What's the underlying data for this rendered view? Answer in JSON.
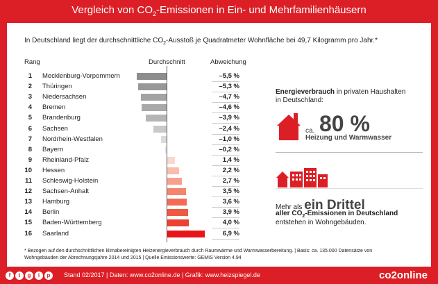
{
  "title": {
    "pre": "Vergleich von CO",
    "sub": "2",
    "post": "-Emissionen in Ein- und Mehrfamilienhäusern"
  },
  "intro": {
    "pre": "In Deutschland liegt der durchschnittliche CO",
    "sub": "2",
    "post": "-Ausstoß je Quadratmeter Wohnfläche bei 49,7 Kilogramm pro Jahr.*"
  },
  "headers": {
    "rank": "Rang",
    "avg": "Durchschnitt",
    "dev": "Abweichung"
  },
  "chart_data": {
    "type": "bar",
    "categories": [
      "Mecklenburg-Vorpommern",
      "Thüringen",
      "Niedersachsen",
      "Bremen",
      "Brandenburg",
      "Sachsen",
      "Nordrhein-Westfalen",
      "Bayern",
      "Rheinland-Pfalz",
      "Hessen",
      "Schleswig-Holstein",
      "Sachsen-Anhalt",
      "Hamburg",
      "Berlin",
      "Baden-Württemberg",
      "Saarland"
    ],
    "ranks": [
      "1",
      "2",
      "3",
      "4",
      "5",
      "6",
      "7",
      "8",
      "9",
      "10",
      "11",
      "12",
      "13",
      "14",
      "15",
      "16"
    ],
    "values": [
      -5.5,
      -5.3,
      -4.7,
      -4.6,
      -3.9,
      -2.4,
      -1.0,
      -0.2,
      1.4,
      2.2,
      2.7,
      3.5,
      3.6,
      3.9,
      4.0,
      6.9
    ],
    "labels": [
      "–5,5 %",
      "–5,3 %",
      "–4,7 %",
      "–4,6 %",
      "–3,9 %",
      "–2,4 %",
      "–1,0 %",
      "–0,2 %",
      "1,4 %",
      "2,2 %",
      "2,7 %",
      "3,5 %",
      "3,6 %",
      "3,9 %",
      "4,0 %",
      "6,9 %"
    ],
    "xlabel": "Durchschnitt",
    "ylabel": "Abweichung"
  },
  "info1": {
    "bold": "Energieverbrauch",
    "rest": " in privaten Haushalten",
    "line2": "in Deutschland:",
    "ca": "ca.",
    "big": "80 %",
    "sub": "Heizung und Warmwasser"
  },
  "info2": {
    "pre": "Mehr als ",
    "big": "ein Drittel",
    "line2pre": "aller CO",
    "line2sub": "2",
    "line2post": "-Emissionen in Deutschland",
    "line3": "entstehen in Wohngebäuden."
  },
  "footnote": {
    "l1": "* Bezogen auf den durchschnittlichen klimabereinigten Heizenergieverbrauch durch Raumwärme und Warmwasserbereitung. | Basis: ca. 135.000 Datensätze von",
    "l2pre": "Wohngebäuden der Abrechnungsjahre 2014 und 2015 | Quelle Emissionswerte: GEMIS Version 4.94"
  },
  "footer": {
    "text": "Stand 02/2017   |   Daten: www.co2online.de   |   Grafik: www.heizspiegel.de",
    "logo": "co2online",
    "social": [
      "f",
      "t",
      "g",
      "i",
      "p"
    ]
  },
  "colors": {
    "red": "#dc1f26",
    "neg": [
      "#8d8d8d",
      "#989898",
      "#a3a3a3",
      "#a9a9a9",
      "#b5b5b5",
      "#c9c9c9",
      "#dbdbdb",
      "#e6e6e6"
    ],
    "pos": [
      "#fbd8cf",
      "#f9bcad",
      "#f6a08d",
      "#f4846e",
      "#f26c57",
      "#ef5843",
      "#ec4032",
      "#e8151a"
    ]
  }
}
